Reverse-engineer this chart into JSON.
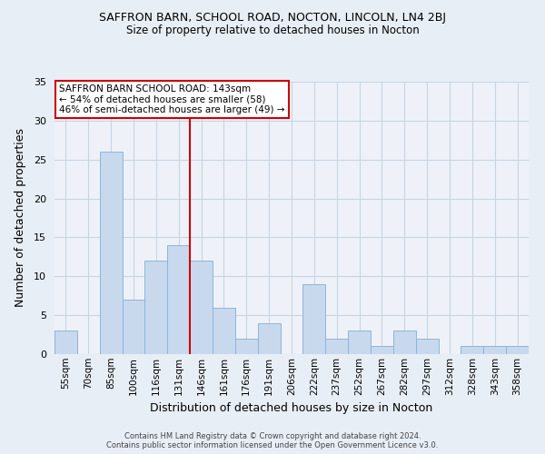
{
  "title": "SAFFRON BARN, SCHOOL ROAD, NOCTON, LINCOLN, LN4 2BJ",
  "subtitle": "Size of property relative to detached houses in Nocton",
  "xlabel": "Distribution of detached houses by size in Nocton",
  "ylabel": "Number of detached properties",
  "bar_labels": [
    "55sqm",
    "70sqm",
    "85sqm",
    "100sqm",
    "116sqm",
    "131sqm",
    "146sqm",
    "161sqm",
    "176sqm",
    "191sqm",
    "206sqm",
    "222sqm",
    "237sqm",
    "252sqm",
    "267sqm",
    "282sqm",
    "297sqm",
    "312sqm",
    "328sqm",
    "343sqm",
    "358sqm"
  ],
  "bar_values": [
    3,
    0,
    26,
    7,
    12,
    14,
    12,
    6,
    2,
    4,
    0,
    9,
    2,
    3,
    1,
    3,
    2,
    0,
    1,
    1,
    1
  ],
  "bar_color": "#c8d9ee",
  "bar_edge_color": "#8db4d8",
  "grid_color": "#c8d4e3",
  "background_color": "#e8eef6",
  "plot_bg_color": "#eef2f8",
  "vline_x": 6.0,
  "vline_color": "#cc0000",
  "annotation_text": "SAFFRON BARN SCHOOL ROAD: 143sqm\n← 54% of detached houses are smaller (58)\n46% of semi-detached houses are larger (49) →",
  "annotation_box_edge": "#cc0000",
  "ylim": [
    0,
    35
  ],
  "yticks": [
    0,
    5,
    10,
    15,
    20,
    25,
    30,
    35
  ],
  "footer_line1": "Contains HM Land Registry data © Crown copyright and database right 2024.",
  "footer_line2": "Contains public sector information licensed under the Open Government Licence v3.0."
}
